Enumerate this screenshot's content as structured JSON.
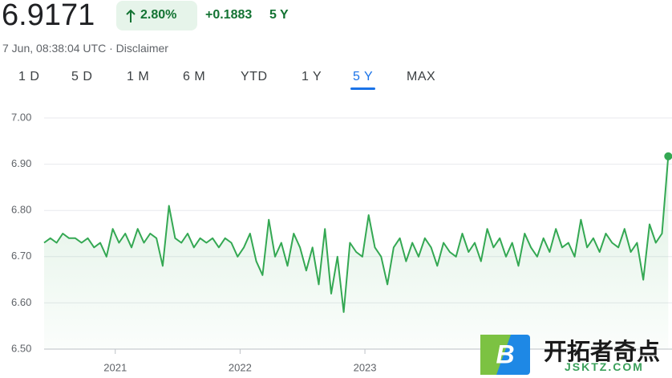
{
  "header": {
    "price": "6.9171",
    "change_pct": "2.80%",
    "change_abs": "+0.1883",
    "period": "5 Y",
    "timestamp": "7 Jun, 08:38:04 UTC · Disclaimer"
  },
  "tabs": {
    "items": [
      "1 D",
      "5 D",
      "1 M",
      "6 M",
      "YTD",
      "1 Y",
      "5 Y",
      "MAX"
    ],
    "active": 6
  },
  "watermark": {
    "brand": "开拓者奇点",
    "site": "JSKTZ.COM",
    "icon_letter": "B"
  },
  "chart_data": {
    "type": "line",
    "color": "#34a853",
    "grid": true,
    "xlim": [
      2020.43,
      2025.46
    ],
    "xticks": [
      2021,
      2022,
      2023
    ],
    "ylim": [
      6.5,
      7.0
    ],
    "yticks": [
      {
        "value": 6.5,
        "label": "6.50"
      },
      {
        "value": 6.6,
        "label": "6.60"
      },
      {
        "value": 6.7,
        "label": "6.70"
      },
      {
        "value": 6.8,
        "label": "6.80"
      },
      {
        "value": 6.9,
        "label": "6.90"
      },
      {
        "value": 7.0,
        "label": "7.00"
      }
    ],
    "x": [
      2020.43,
      2020.48,
      2020.53,
      2020.58,
      2020.63,
      2020.68,
      2020.73,
      2020.78,
      2020.83,
      2020.88,
      2020.93,
      2020.98,
      2021.03,
      2021.08,
      2021.13,
      2021.18,
      2021.23,
      2021.28,
      2021.33,
      2021.38,
      2021.43,
      2021.48,
      2021.53,
      2021.58,
      2021.63,
      2021.68,
      2021.73,
      2021.78,
      2021.83,
      2021.88,
      2021.93,
      2021.98,
      2022.03,
      2022.08,
      2022.13,
      2022.18,
      2022.23,
      2022.28,
      2022.33,
      2022.38,
      2022.43,
      2022.48,
      2022.53,
      2022.58,
      2022.63,
      2022.68,
      2022.73,
      2022.78,
      2022.83,
      2022.88,
      2022.93,
      2022.98,
      2023.03,
      2023.08,
      2023.13,
      2023.18,
      2023.23,
      2023.28,
      2023.33,
      2023.38,
      2023.43,
      2023.48,
      2023.53,
      2023.58,
      2023.63,
      2023.68,
      2023.73,
      2023.78,
      2023.83,
      2023.88,
      2023.93,
      2023.98,
      2024.03,
      2024.08,
      2024.13,
      2024.18,
      2024.23,
      2024.28,
      2024.33,
      2024.38,
      2024.43,
      2024.48,
      2024.53,
      2024.58,
      2024.63,
      2024.68,
      2024.73,
      2024.78,
      2024.83,
      2024.88,
      2024.93,
      2024.98,
      2025.03,
      2025.08,
      2025.13,
      2025.18,
      2025.23,
      2025.28,
      2025.33,
      2025.38,
      2025.43
    ],
    "values": [
      6.73,
      6.74,
      6.73,
      6.75,
      6.74,
      6.74,
      6.73,
      6.74,
      6.72,
      6.73,
      6.7,
      6.76,
      6.73,
      6.75,
      6.72,
      6.76,
      6.73,
      6.75,
      6.74,
      6.68,
      6.81,
      6.74,
      6.73,
      6.75,
      6.72,
      6.74,
      6.73,
      6.74,
      6.72,
      6.74,
      6.73,
      6.7,
      6.72,
      6.75,
      6.69,
      6.66,
      6.78,
      6.7,
      6.73,
      6.68,
      6.75,
      6.72,
      6.67,
      6.72,
      6.64,
      6.76,
      6.62,
      6.7,
      6.58,
      6.73,
      6.71,
      6.7,
      6.79,
      6.72,
      6.7,
      6.64,
      6.72,
      6.74,
      6.69,
      6.73,
      6.7,
      6.74,
      6.72,
      6.68,
      6.73,
      6.71,
      6.7,
      6.75,
      6.71,
      6.73,
      6.69,
      6.76,
      6.72,
      6.74,
      6.7,
      6.73,
      6.68,
      6.75,
      6.72,
      6.7,
      6.74,
      6.71,
      6.76,
      6.72,
      6.73,
      6.7,
      6.78,
      6.72,
      6.74,
      6.71,
      6.75,
      6.73,
      6.72,
      6.76,
      6.71,
      6.73,
      6.65,
      6.77,
      6.73,
      6.75,
      6.9171
    ]
  }
}
